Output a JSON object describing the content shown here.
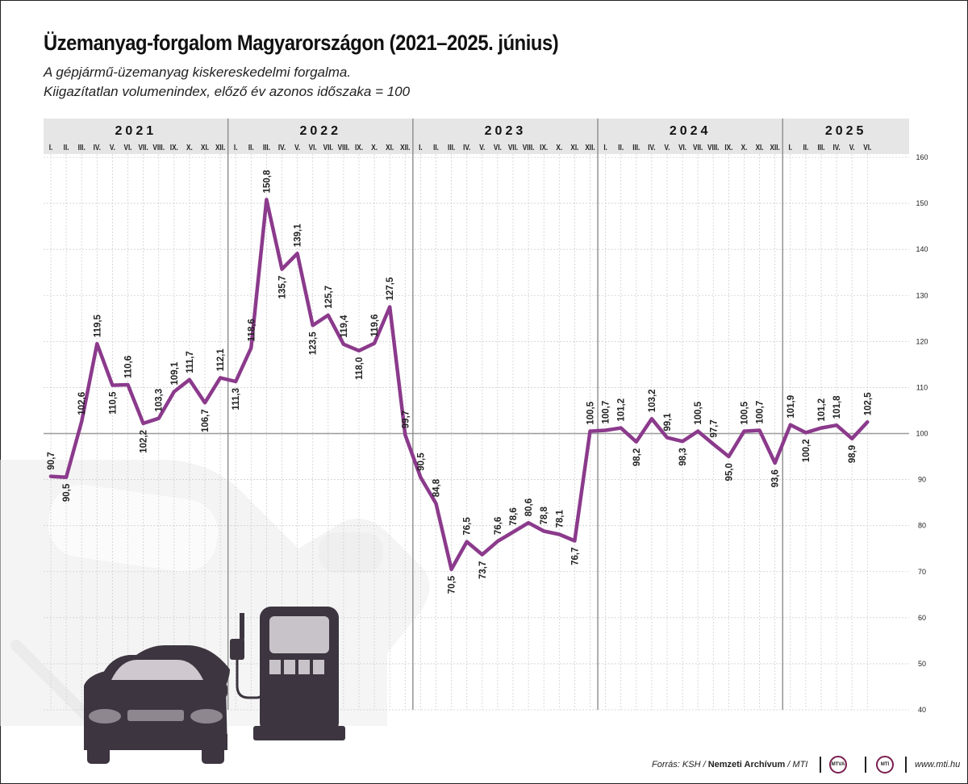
{
  "header": {
    "title": "Üzemanyag-forgalom Magyarországon (2021–2025. június)",
    "subtitle_line1": "A gépjármű-üzemanyag kiskereskedelmi forgalma.",
    "subtitle_line2": "Kiigazítatlan volumenindex, előző év azonos időszaka = 100"
  },
  "footer": {
    "source_prefix": "Forrás: KSH / ",
    "source_bold": "Nemzeti Archívum",
    "source_suffix": " / MTI",
    "logo1": "MTVA",
    "logo2": "MTI",
    "site": "www.mti.hu"
  },
  "colors": {
    "line": "#8b3a8c",
    "header_band": "#e6e6e6",
    "grid": "#cfcfcf",
    "year_divider": "#8c8c8c"
  },
  "chart_data": {
    "type": "line",
    "years": [
      "2021",
      "2022",
      "2023",
      "2024",
      "2025"
    ],
    "months_per_year": [
      12,
      12,
      12,
      12,
      6
    ],
    "month_labels": [
      "I.",
      "II.",
      "III.",
      "IV.",
      "V.",
      "VI.",
      "VII.",
      "VIII.",
      "IX.",
      "X.",
      "XI.",
      "XII."
    ],
    "ylim": [
      40,
      160
    ],
    "yticks": [
      40,
      50,
      60,
      70,
      80,
      90,
      100,
      110,
      120,
      130,
      140,
      150,
      160
    ],
    "reference_line": 100,
    "grid": true,
    "series": [
      {
        "values": [
          90.7,
          90.5,
          102.6,
          119.5,
          110.5,
          110.6,
          102.2,
          103.3,
          109.1,
          111.7,
          106.7,
          112.1,
          111.3,
          118.6,
          150.8,
          135.7,
          139.1,
          123.5,
          125.7,
          119.4,
          118.0,
          119.6,
          127.5,
          99.7,
          90.5,
          84.8,
          70.5,
          76.5,
          73.7,
          76.6,
          78.6,
          80.6,
          78.8,
          78.1,
          76.7,
          100.5,
          100.7,
          101.2,
          98.2,
          103.2,
          99.1,
          98.3,
          100.5,
          97.7,
          95.0,
          100.5,
          100.7,
          93.6,
          101.9,
          100.2,
          101.2,
          101.8,
          98.9,
          102.5
        ],
        "labels": [
          "90,7",
          "90,5",
          "102,6",
          "119,5",
          "110,5",
          "110,6",
          "102,2",
          "103,3",
          "109,1",
          "111,7",
          "106,7",
          "112,1",
          "111,3",
          "118,6",
          "150,8",
          "135,7",
          "139,1",
          "123,5",
          "125,7",
          "119,4",
          "118,0",
          "119,6",
          "127,5",
          "99,7",
          "90,5",
          "84,8",
          "70,5",
          "76,5",
          "73,7",
          "76,6",
          "78,6",
          "80,6",
          "78,8",
          "78,1",
          "76,7",
          "100,5",
          "100,7",
          "101,2",
          "98,2",
          "103,2",
          "99,1",
          "98,3",
          "100,5",
          "97,7",
          "95,0",
          "100,5",
          "100,7",
          "93,6",
          "101,9",
          "100,2",
          "101,2",
          "101,8",
          "98,9",
          "102,5"
        ]
      }
    ]
  }
}
